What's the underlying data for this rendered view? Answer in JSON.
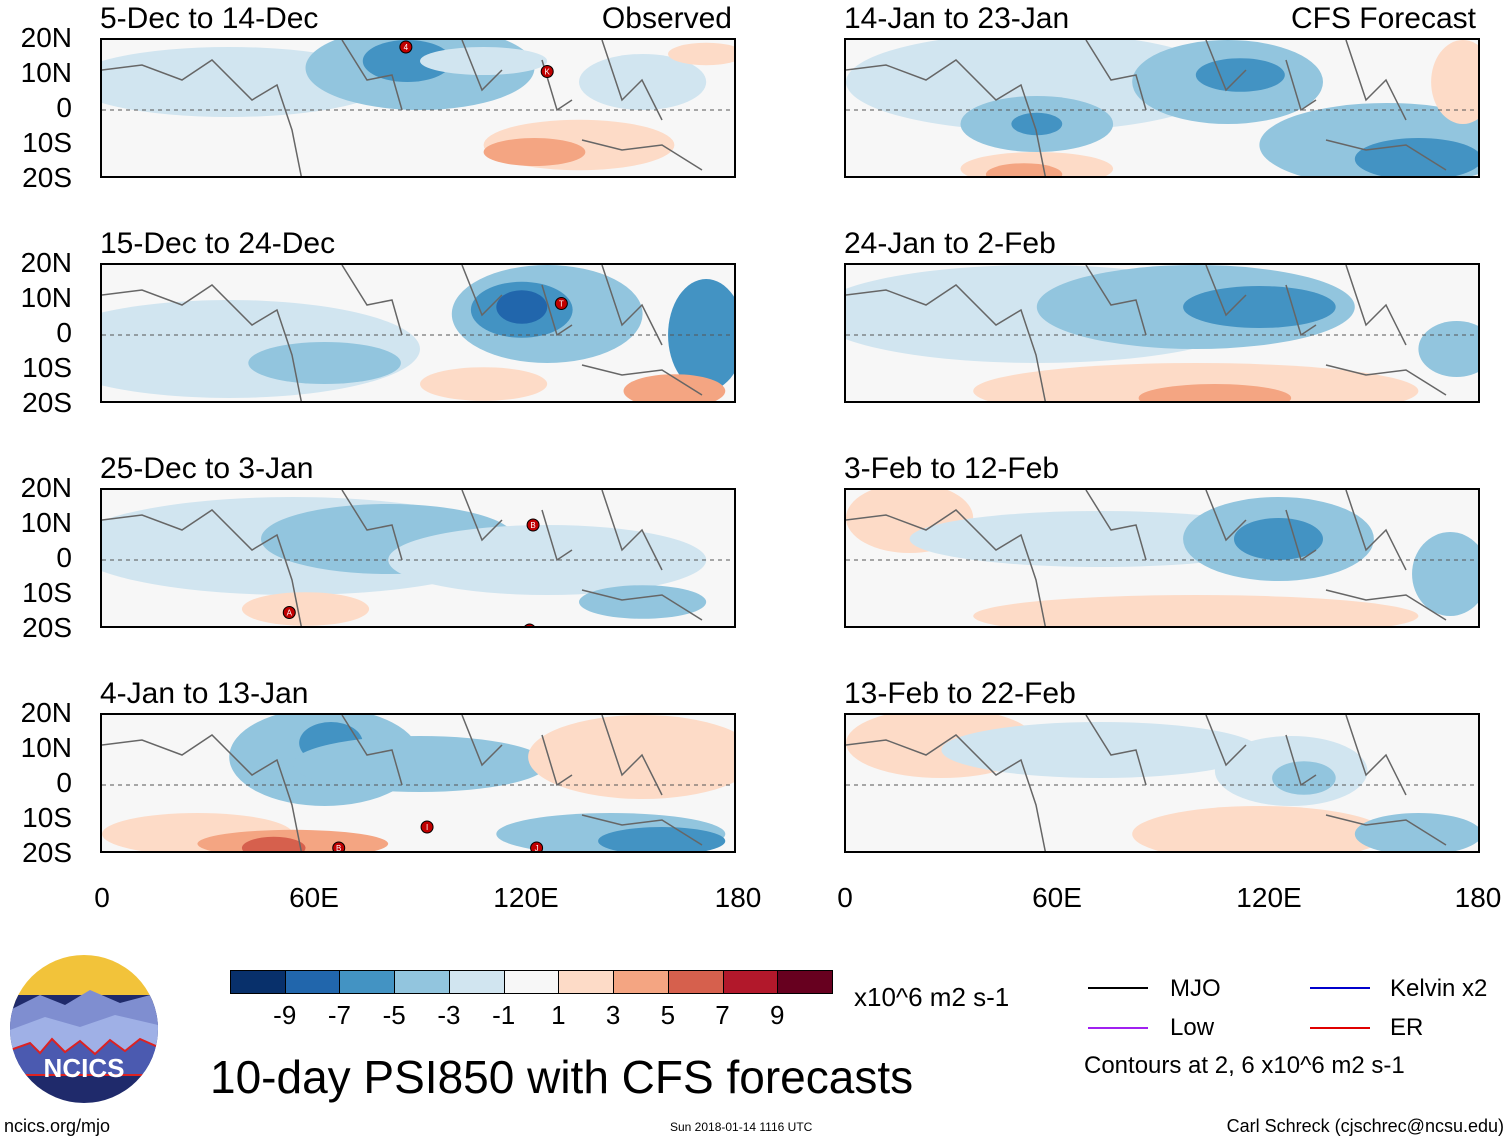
{
  "chart_data": {
    "type": "heatmap",
    "title": "10-day PSI850 with CFS forecasts",
    "variable": "PSI850",
    "units": "x10^6 m2 s-1",
    "lat_labels": [
      "20N",
      "10N",
      "0",
      "10S",
      "20S"
    ],
    "lon_labels": [
      "0",
      "60E",
      "120E",
      "180"
    ],
    "xlim": [
      0,
      180
    ],
    "ylim": [
      -20,
      20
    ],
    "colorbar": {
      "ticks": [
        "-9",
        "-7",
        "-5",
        "-3",
        "-1",
        "1",
        "3",
        "5",
        "7",
        "9"
      ],
      "colors": [
        "#08306b",
        "#2166ac",
        "#4393c3",
        "#92c5de",
        "#d1e5f0",
        "#f7f7f7",
        "#fddbc7",
        "#f4a582",
        "#d6604d",
        "#b2182b",
        "#67001f"
      ]
    },
    "contour_legend": [
      {
        "label": "MJO",
        "color": "#000000"
      },
      {
        "label": "Kelvin x2",
        "color": "#0000cc"
      },
      {
        "label": "Low",
        "color": "#a020f0"
      },
      {
        "label": "ER",
        "color": "#e00000"
      }
    ],
    "contour_note": "Contours at 2, 6 x10^6 m2 s-1",
    "observed_label": "Observed",
    "forecast_label": "CFS Forecast",
    "panels": [
      {
        "period": "5-Dec to 14-Dec",
        "source": "observed",
        "storms": [
          {
            "lon": 86,
            "lat": 18,
            "label": "4"
          },
          {
            "lon": 126,
            "lat": 11,
            "label": "K"
          }
        ]
      },
      {
        "period": "15-Dec to 24-Dec",
        "source": "observed",
        "storms": [
          {
            "lon": 130,
            "lat": 9,
            "label": "T"
          }
        ]
      },
      {
        "period": "25-Dec to 3-Jan",
        "source": "observed",
        "storms": [
          {
            "lon": 122,
            "lat": 10,
            "label": "B"
          },
          {
            "lon": 53,
            "lat": -15,
            "label": "A"
          },
          {
            "lon": 121,
            "lat": -20,
            "label": "H"
          }
        ]
      },
      {
        "period": "4-Jan to 13-Jan",
        "source": "observed",
        "storms": [
          {
            "lon": 92,
            "lat": -12,
            "label": "I"
          },
          {
            "lon": 67,
            "lat": -18,
            "label": "B"
          },
          {
            "lon": 123,
            "lat": -18,
            "label": "J"
          }
        ]
      },
      {
        "period": "14-Jan to 23-Jan",
        "source": "forecast",
        "storms": []
      },
      {
        "period": "24-Jan to 2-Feb",
        "source": "forecast",
        "storms": []
      },
      {
        "period": "3-Feb to 12-Feb",
        "source": "forecast",
        "storms": []
      },
      {
        "period": "13-Feb to 22-Feb",
        "source": "forecast",
        "storms": []
      }
    ]
  },
  "logo_text": "NCICS",
  "footer": {
    "url": "ncics.org/mjo",
    "timestamp": "Sun 2018-01-14 1116 UTC",
    "author": "Carl Schreck (cjschrec@ncsu.edu)"
  }
}
